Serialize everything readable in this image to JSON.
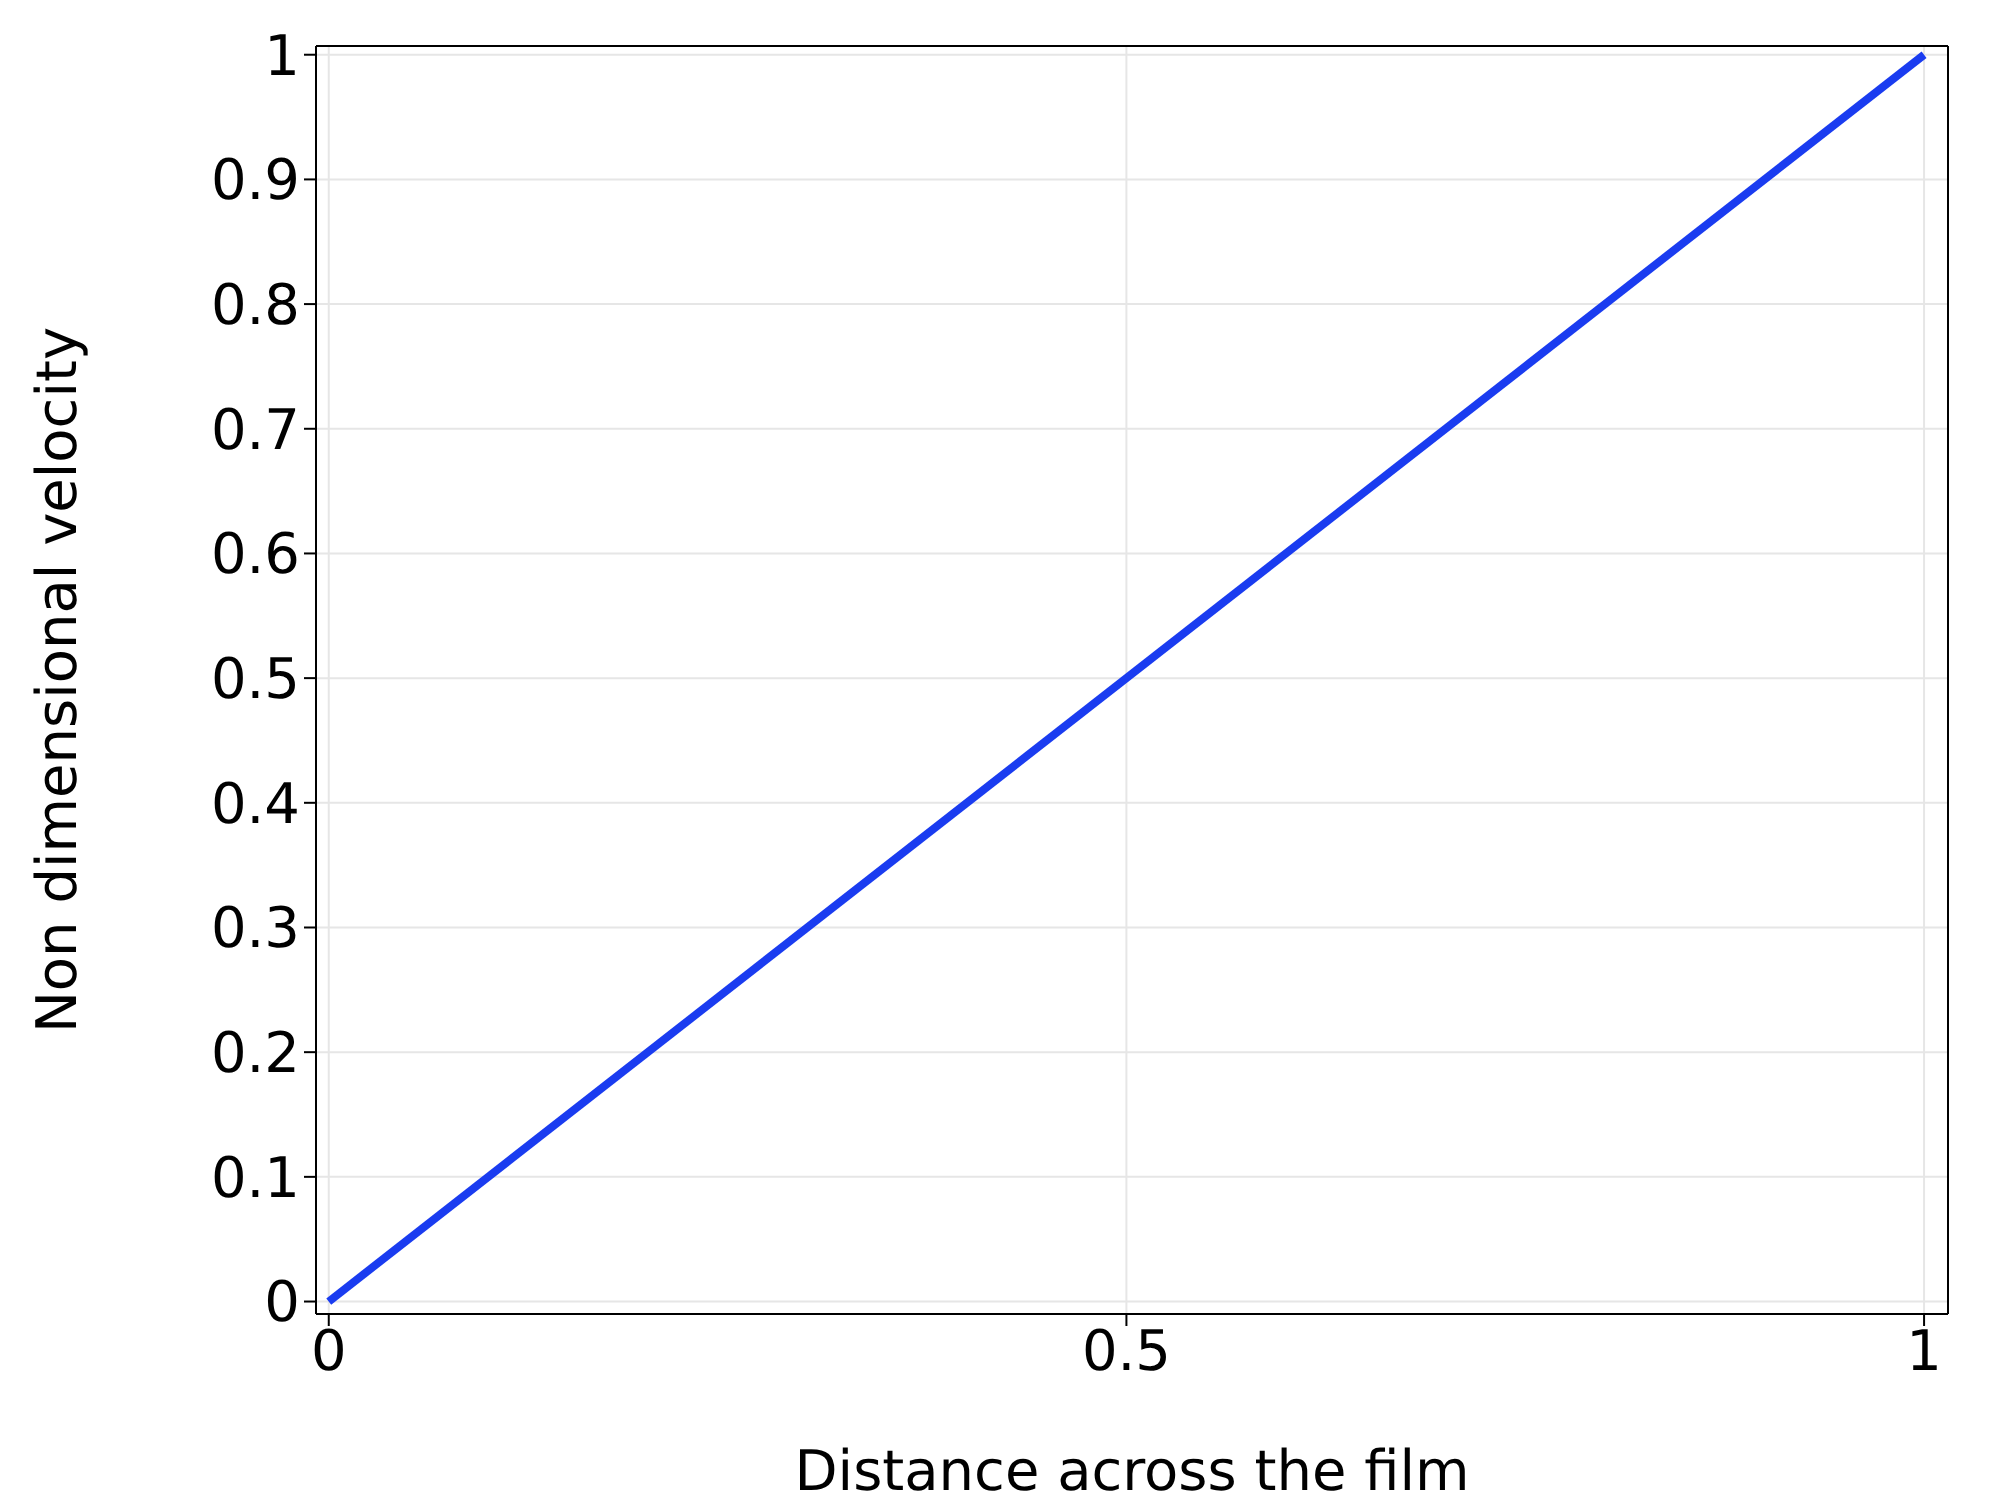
{
  "chart_data": {
    "type": "line",
    "xlabel": "Distance across the film",
    "ylabel": "Non dimensional velocity",
    "x": [
      0,
      1
    ],
    "series": [
      {
        "color": "#1a3cf0",
        "values": [
          0,
          1
        ]
      }
    ],
    "xlim": [
      -0.008,
      1.015
    ],
    "xticks": [
      0,
      0.5,
      1
    ],
    "ylim": [
      -0.01,
      1.007
    ],
    "yticks": [
      0,
      0.1,
      0.2,
      0.3,
      0.4,
      0.5,
      0.6,
      0.7,
      0.8,
      0.9,
      1
    ],
    "grid": true,
    "legend": false,
    "marker": "none",
    "line_style": "solid"
  }
}
